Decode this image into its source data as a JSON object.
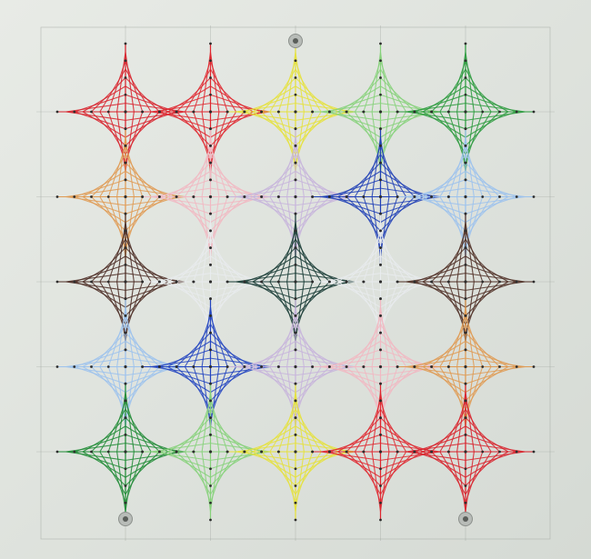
{
  "photo": {
    "subject": "string-art-astroid-grid",
    "colors": {
      "board": "#e6e9e4",
      "board_shadow": "#cfd4ce",
      "pencil_line": "#9aa09a",
      "nail": "#2d2d2d",
      "tack_ring": "#b8bcb8",
      "tack_center": "#5a5e5a"
    },
    "grid": {
      "rows": 5,
      "cols": 5
    },
    "motifs": [
      [
        "#d8202a",
        "#e0262e",
        "#e6e23a",
        "#86d27a",
        "#2a9a3c"
      ],
      [
        "#e09a52",
        "#f2b8c2",
        "#c7b4dc",
        "#1f3fb6",
        "#9cc2ee"
      ],
      [
        "#4a2a22",
        "#e9ecef",
        "#173a34",
        "#e9ecef",
        "#4e2e24"
      ],
      [
        "#9cc2ee",
        "#2244c0",
        "#c7b4dc",
        "#f2b8c2",
        "#e09a52"
      ],
      [
        "#1e8a34",
        "#86d27a",
        "#e6e23a",
        "#e0262e",
        "#d8202a"
      ]
    ],
    "tacks": [
      {
        "row": 0,
        "col": 2,
        "position": "top"
      },
      {
        "row": 4,
        "col": 0,
        "position": "bottom"
      },
      {
        "row": 4,
        "col": 4,
        "position": "bottom"
      }
    ]
  }
}
